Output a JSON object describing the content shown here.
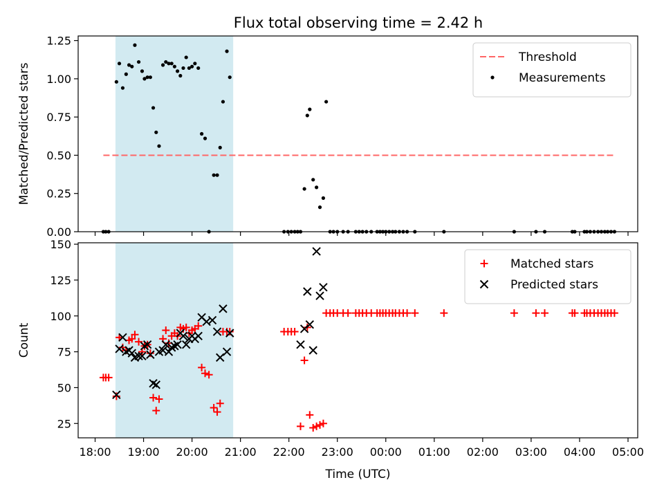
{
  "figure_title": "Flux total observing time = 2.42 h",
  "colors": {
    "shade": "#add8e6",
    "threshold": "#ff6666",
    "measurement": "#000000",
    "matched": "#ff0000",
    "predicted": "#000000"
  },
  "x_ticks": [
    "18:00",
    "19:00",
    "20:00",
    "21:00",
    "22:00",
    "23:00",
    "00:00",
    "01:00",
    "02:00",
    "03:00",
    "04:00",
    "05:00"
  ],
  "chart_data": [
    {
      "type": "scatter",
      "title": "Flux total observing time = 2.42 h",
      "xlabel": "",
      "ylabel": "Matched/Predicted stars",
      "x_unit": "hours since 18:00 UTC",
      "xlim": [
        -0.35,
        11.2
      ],
      "ylim": [
        0,
        1.28
      ],
      "yticks": [
        0.0,
        0.25,
        0.5,
        0.75,
        1.0,
        1.25
      ],
      "ytick_labels": [
        "0.00",
        "0.25",
        "0.50",
        "0.75",
        "1.00",
        "1.25"
      ],
      "shaded_span": [
        0.42,
        2.85
      ],
      "threshold": {
        "name": "Threshold",
        "y": 0.5,
        "x_range": [
          0.17,
          10.72
        ]
      },
      "legend_position": "top-right",
      "series": [
        {
          "name": "Measurements",
          "points": [
            [
              0.17,
              0
            ],
            [
              0.22,
              0
            ],
            [
              0.28,
              0
            ],
            [
              0.44,
              0.98
            ],
            [
              0.5,
              1.1
            ],
            [
              0.57,
              0.94
            ],
            [
              0.64,
              1.03
            ],
            [
              0.7,
              1.09
            ],
            [
              0.76,
              1.08
            ],
            [
              0.82,
              1.22
            ],
            [
              0.9,
              1.11
            ],
            [
              0.97,
              1.05
            ],
            [
              1.02,
              1.0
            ],
            [
              1.08,
              1.01
            ],
            [
              1.14,
              1.01
            ],
            [
              1.2,
              0.81
            ],
            [
              1.26,
              0.65
            ],
            [
              1.32,
              0.56
            ],
            [
              1.4,
              1.09
            ],
            [
              1.46,
              1.11
            ],
            [
              1.52,
              1.1
            ],
            [
              1.58,
              1.1
            ],
            [
              1.64,
              1.08
            ],
            [
              1.7,
              1.05
            ],
            [
              1.76,
              1.02
            ],
            [
              1.82,
              1.07
            ],
            [
              1.88,
              1.14
            ],
            [
              1.94,
              1.07
            ],
            [
              2.0,
              1.08
            ],
            [
              2.06,
              1.1
            ],
            [
              2.13,
              1.07
            ],
            [
              2.2,
              0.64
            ],
            [
              2.27,
              0.61
            ],
            [
              2.35,
              0
            ],
            [
              2.45,
              0.37
            ],
            [
              2.52,
              0.37
            ],
            [
              2.58,
              0.55
            ],
            [
              2.64,
              0.85
            ],
            [
              2.72,
              1.18
            ],
            [
              2.78,
              1.01
            ],
            [
              3.9,
              0
            ],
            [
              3.98,
              0
            ],
            [
              4.05,
              0
            ],
            [
              4.12,
              0
            ],
            [
              4.18,
              0
            ],
            [
              4.24,
              0
            ],
            [
              4.32,
              0.28
            ],
            [
              4.38,
              0.76
            ],
            [
              4.43,
              0.8
            ],
            [
              4.5,
              0.34
            ],
            [
              4.57,
              0.29
            ],
            [
              4.64,
              0.16
            ],
            [
              4.71,
              0.22
            ],
            [
              4.77,
              0.85
            ],
            [
              4.85,
              0
            ],
            [
              4.92,
              0
            ],
            [
              5.0,
              0
            ],
            [
              5.12,
              0
            ],
            [
              5.22,
              0
            ],
            [
              5.38,
              0
            ],
            [
              5.45,
              0
            ],
            [
              5.52,
              0
            ],
            [
              5.6,
              0
            ],
            [
              5.7,
              0
            ],
            [
              5.82,
              0
            ],
            [
              5.88,
              0
            ],
            [
              5.94,
              0
            ],
            [
              6.0,
              0
            ],
            [
              6.07,
              0
            ],
            [
              6.14,
              0
            ],
            [
              6.2,
              0
            ],
            [
              6.28,
              0
            ],
            [
              6.36,
              0
            ],
            [
              6.44,
              0
            ],
            [
              6.6,
              0
            ],
            [
              7.2,
              0
            ],
            [
              8.65,
              0
            ],
            [
              9.1,
              0
            ],
            [
              9.28,
              0
            ],
            [
              9.85,
              0
            ],
            [
              9.9,
              0
            ],
            [
              10.1,
              0
            ],
            [
              10.15,
              0
            ],
            [
              10.22,
              0
            ],
            [
              10.3,
              0
            ],
            [
              10.38,
              0
            ],
            [
              10.45,
              0
            ],
            [
              10.52,
              0
            ],
            [
              10.58,
              0
            ],
            [
              10.65,
              0
            ],
            [
              10.72,
              0
            ]
          ]
        }
      ]
    },
    {
      "type": "scatter",
      "title": "",
      "xlabel": "Time (UTC)",
      "ylabel": "Count",
      "x_unit": "hours since 18:00 UTC",
      "xlim": [
        -0.35,
        11.2
      ],
      "ylim": [
        15,
        151
      ],
      "yticks": [
        25,
        50,
        75,
        100,
        125,
        150
      ],
      "ytick_labels": [
        "25",
        "50",
        "75",
        "100",
        "125",
        "150"
      ],
      "shaded_span": [
        0.42,
        2.85
      ],
      "legend_position": "top-right",
      "series": [
        {
          "name": "Matched stars",
          "marker": "plus",
          "points": [
            [
              0.17,
              57
            ],
            [
              0.22,
              57
            ],
            [
              0.28,
              57
            ],
            [
              0.44,
              44
            ],
            [
              0.5,
              85
            ],
            [
              0.57,
              78
            ],
            [
              0.64,
              76
            ],
            [
              0.7,
              83
            ],
            [
              0.76,
              84
            ],
            [
              0.82,
              87
            ],
            [
              0.9,
              82
            ],
            [
              0.97,
              75
            ],
            [
              1.02,
              79
            ],
            [
              1.08,
              80
            ],
            [
              1.14,
              74
            ],
            [
              1.2,
              43
            ],
            [
              1.26,
              34
            ],
            [
              1.32,
              42
            ],
            [
              1.4,
              84
            ],
            [
              1.46,
              90
            ],
            [
              1.52,
              81
            ],
            [
              1.58,
              86
            ],
            [
              1.64,
              88
            ],
            [
              1.7,
              86
            ],
            [
              1.76,
              92
            ],
            [
              1.82,
              91
            ],
            [
              1.88,
              92
            ],
            [
              1.94,
              88
            ],
            [
              2.0,
              90
            ],
            [
              2.06,
              91
            ],
            [
              2.13,
              93
            ],
            [
              2.2,
              64
            ],
            [
              2.27,
              60
            ],
            [
              2.35,
              59
            ],
            [
              2.45,
              36
            ],
            [
              2.52,
              33
            ],
            [
              2.58,
              39
            ],
            [
              2.64,
              89
            ],
            [
              2.72,
              89
            ],
            [
              2.78,
              89
            ],
            [
              3.9,
              89
            ],
            [
              3.98,
              89
            ],
            [
              4.05,
              89
            ],
            [
              4.12,
              89
            ],
            [
              4.24,
              23
            ],
            [
              4.32,
              69
            ],
            [
              4.38,
              92
            ],
            [
              4.43,
              31
            ],
            [
              4.5,
              22
            ],
            [
              4.57,
              23
            ],
            [
              4.64,
              24
            ],
            [
              4.71,
              25
            ],
            [
              4.77,
              102
            ],
            [
              4.85,
              102
            ],
            [
              4.92,
              102
            ],
            [
              5.0,
              102
            ],
            [
              5.12,
              102
            ],
            [
              5.22,
              102
            ],
            [
              5.38,
              102
            ],
            [
              5.45,
              102
            ],
            [
              5.52,
              102
            ],
            [
              5.6,
              102
            ],
            [
              5.7,
              102
            ],
            [
              5.82,
              102
            ],
            [
              5.88,
              102
            ],
            [
              5.94,
              102
            ],
            [
              6.0,
              102
            ],
            [
              6.07,
              102
            ],
            [
              6.14,
              102
            ],
            [
              6.2,
              102
            ],
            [
              6.28,
              102
            ],
            [
              6.36,
              102
            ],
            [
              6.44,
              102
            ],
            [
              6.6,
              102
            ],
            [
              7.2,
              102
            ],
            [
              8.65,
              102
            ],
            [
              9.1,
              102
            ],
            [
              9.28,
              102
            ],
            [
              9.85,
              102
            ],
            [
              9.9,
              102
            ],
            [
              10.1,
              102
            ],
            [
              10.15,
              102
            ],
            [
              10.22,
              102
            ],
            [
              10.3,
              102
            ],
            [
              10.38,
              102
            ],
            [
              10.45,
              102
            ],
            [
              10.52,
              102
            ],
            [
              10.58,
              102
            ],
            [
              10.65,
              102
            ],
            [
              10.72,
              102
            ]
          ]
        },
        {
          "name": "Predicted stars",
          "marker": "x",
          "points": [
            [
              0.44,
              45
            ],
            [
              0.5,
              77
            ],
            [
              0.57,
              85
            ],
            [
              0.64,
              75
            ],
            [
              0.7,
              76
            ],
            [
              0.76,
              74
            ],
            [
              0.82,
              71
            ],
            [
              0.9,
              72
            ],
            [
              0.97,
              72
            ],
            [
              1.02,
              79
            ],
            [
              1.08,
              80
            ],
            [
              1.14,
              73
            ],
            [
              1.2,
              53
            ],
            [
              1.26,
              52
            ],
            [
              1.32,
              75
            ],
            [
              1.4,
              76
            ],
            [
              1.46,
              80
            ],
            [
              1.52,
              75
            ],
            [
              1.58,
              78
            ],
            [
              1.64,
              79
            ],
            [
              1.7,
              80
            ],
            [
              1.76,
              88
            ],
            [
              1.82,
              86
            ],
            [
              1.88,
              80
            ],
            [
              1.94,
              84
            ],
            [
              2.0,
              86
            ],
            [
              2.06,
              84
            ],
            [
              2.13,
              86
            ],
            [
              2.2,
              99
            ],
            [
              2.3,
              96
            ],
            [
              2.42,
              97
            ],
            [
              2.52,
              89
            ],
            [
              2.58,
              71
            ],
            [
              2.64,
              105
            ],
            [
              2.72,
              75
            ],
            [
              2.78,
              88
            ],
            [
              4.24,
              80
            ],
            [
              4.32,
              91
            ],
            [
              4.38,
              117
            ],
            [
              4.43,
              94
            ],
            [
              4.5,
              76
            ],
            [
              4.57,
              145
            ],
            [
              4.64,
              114
            ],
            [
              4.71,
              120
            ]
          ]
        }
      ]
    }
  ]
}
